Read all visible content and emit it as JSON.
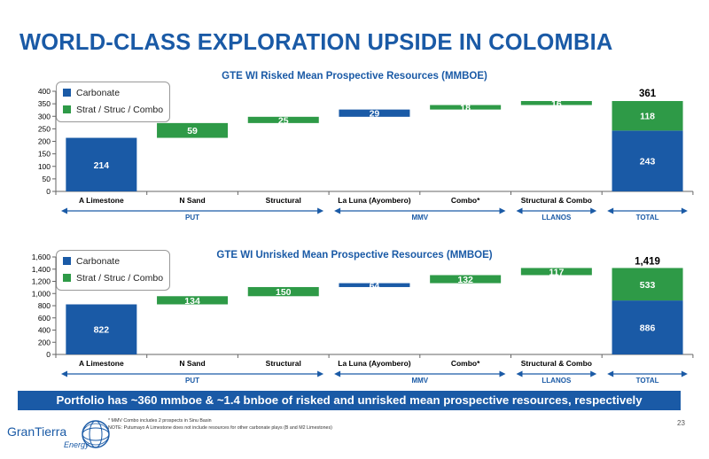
{
  "page": {
    "title": "WORLD-CLASS EXPLORATION UPSIDE IN COLOMBIA",
    "banner": "Portfolio has ~360 mmboe & ~1.4 bnboe of risked and unrisked mean prospective resources, respectively",
    "footnotes": [
      "* MMV Combo includes 2 prospects in Sinu Basin",
      "NOTE: Putumayo A Limestone does not include resources for other carbonate plays (B and M2 Limestones)"
    ],
    "page_number": "23",
    "logo": {
      "name": "GranTierra",
      "sub": "Energy"
    }
  },
  "colors": {
    "carbonate": "#1a5aa6",
    "strat": "#2e9a47",
    "title": "#1a5aa6",
    "axis": "#666666",
    "arrow": "#1a5aa6"
  },
  "legend": {
    "carbonate": "Carbonate",
    "strat": "Strat / Struc / Combo"
  },
  "chart_data": [
    {
      "type": "bar",
      "subtype": "waterfall",
      "title": "GTE WI Risked Mean Prospective Resources (MMBOE)",
      "categories": [
        "A Limestone",
        "N Sand",
        "Structural",
        "La Luna (Ayombero)",
        "Combo*",
        "Structural & Combo",
        "TOTAL"
      ],
      "ylim": [
        0,
        400
      ],
      "yticks": [
        0,
        50,
        100,
        150,
        200,
        250,
        300,
        350,
        400
      ],
      "ytick_labels": [
        "0",
        "50",
        "100",
        "150",
        "200",
        "250",
        "300",
        "350",
        "400"
      ],
      "grid": false,
      "legend_position": "top-left",
      "steps": [
        {
          "category": "A Limestone",
          "value": 214,
          "type": "carbonate",
          "label": "214"
        },
        {
          "category": "N Sand",
          "value": 59,
          "type": "strat",
          "label": "59"
        },
        {
          "category": "Structural",
          "value": 25,
          "type": "strat",
          "label": "25"
        },
        {
          "category": "La Luna (Ayombero)",
          "value": 29,
          "type": "carbonate",
          "label": "29"
        },
        {
          "category": "Combo*",
          "value": 18,
          "type": "strat",
          "label": "18"
        },
        {
          "category": "Structural & Combo",
          "value": 16,
          "type": "strat",
          "label": "16"
        }
      ],
      "total": {
        "category": "TOTAL",
        "carbonate": 243,
        "strat": 118,
        "sum": 361,
        "carbonate_label": "243",
        "strat_label": "118",
        "sum_label": "361"
      },
      "groups": [
        {
          "label": "PUT",
          "from": 0,
          "to": 2
        },
        {
          "label": "MMV",
          "from": 3,
          "to": 4
        },
        {
          "label": "LLANOS",
          "from": 5,
          "to": 5
        },
        {
          "label": "TOTAL",
          "from": 6,
          "to": 6
        }
      ]
    },
    {
      "type": "bar",
      "subtype": "waterfall",
      "title": "GTE WI Unrisked Mean Prospective Resources (MMBOE)",
      "categories": [
        "A Limestone",
        "N Sand",
        "Structural",
        "La Luna (Ayombero)",
        "Combo*",
        "Structural & Combo",
        "TOTAL"
      ],
      "ylim": [
        0,
        1600
      ],
      "yticks": [
        0,
        200,
        400,
        600,
        800,
        1000,
        1200,
        1400,
        1600
      ],
      "ytick_labels": [
        "0",
        "200",
        "400",
        "600",
        "800",
        "1,000",
        "1,200",
        "1,400",
        "1,600"
      ],
      "grid": false,
      "legend_position": "top-left",
      "steps": [
        {
          "category": "A Limestone",
          "value": 822,
          "type": "carbonate",
          "label": "822"
        },
        {
          "category": "N Sand",
          "value": 134,
          "type": "strat",
          "label": "134"
        },
        {
          "category": "Structural",
          "value": 150,
          "type": "strat",
          "label": "150"
        },
        {
          "category": "La Luna (Ayombero)",
          "value": 64,
          "type": "carbonate",
          "label": "64"
        },
        {
          "category": "Combo*",
          "value": 132,
          "type": "strat",
          "label": "132"
        },
        {
          "category": "Structural & Combo",
          "value": 117,
          "type": "strat",
          "label": "117"
        }
      ],
      "total": {
        "category": "TOTAL",
        "carbonate": 886,
        "strat": 533,
        "sum": 1419,
        "carbonate_label": "886",
        "strat_label": "533",
        "sum_label": "1,419"
      },
      "groups": [
        {
          "label": "PUT",
          "from": 0,
          "to": 2
        },
        {
          "label": "MMV",
          "from": 3,
          "to": 4
        },
        {
          "label": "LLANOS",
          "from": 5,
          "to": 5
        },
        {
          "label": "TOTAL",
          "from": 6,
          "to": 6
        }
      ]
    }
  ]
}
